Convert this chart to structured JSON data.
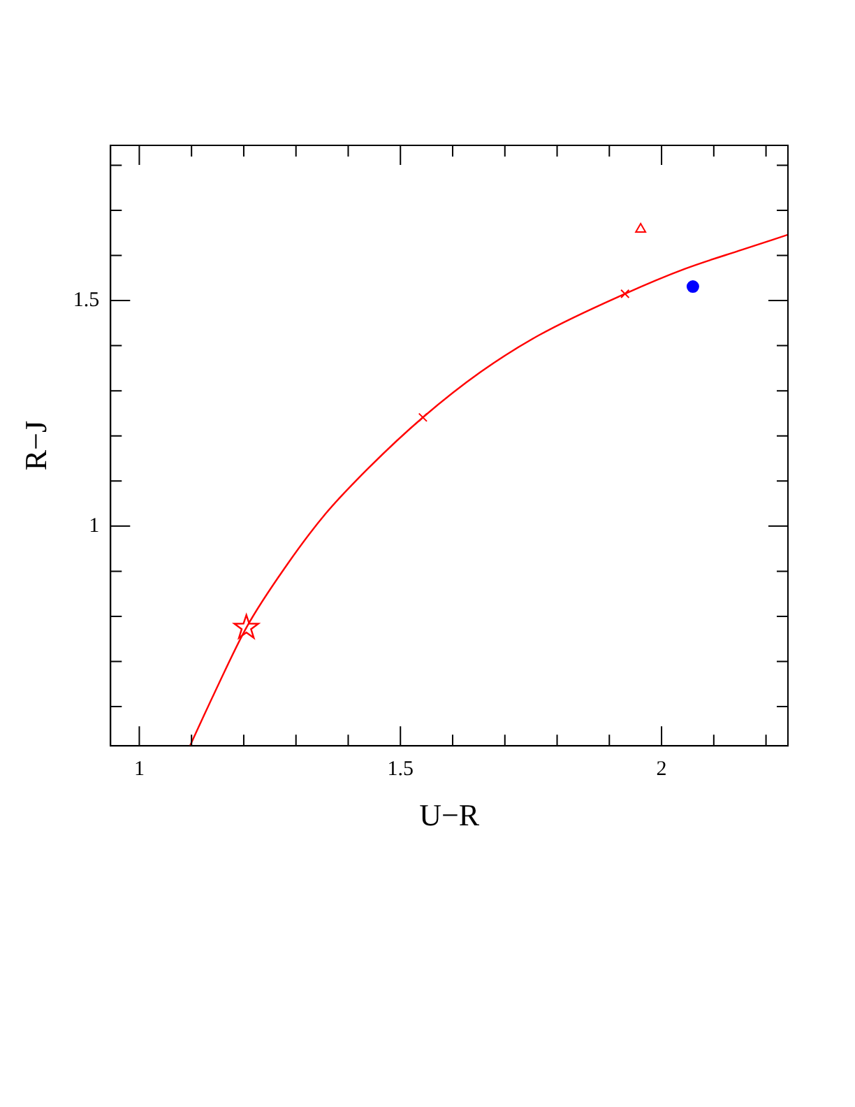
{
  "chart_data": {
    "type": "scatter",
    "xlabel": "U−R",
    "ylabel": "R−J",
    "xlim": [
      0.945,
      2.242
    ],
    "ylim": [
      0.513,
      1.844
    ],
    "xticks": [
      1,
      {
        "value": 1.1,
        "label": null
      },
      {
        "value": 1.2,
        "label": null
      },
      {
        "value": 1.3,
        "label": null
      },
      {
        "value": 1.4,
        "label": null
      },
      1.5,
      {
        "value": 1.6,
        "label": null
      },
      {
        "value": 1.7,
        "label": null
      },
      {
        "value": 1.8,
        "label": null
      },
      {
        "value": 1.9,
        "label": null
      },
      2,
      {
        "value": 2.1,
        "label": null
      },
      {
        "value": 2.2,
        "label": null
      }
    ],
    "yticks": [
      {
        "value": 0.6,
        "label": null
      },
      {
        "value": 0.7,
        "label": null
      },
      {
        "value": 0.8,
        "label": null
      },
      {
        "value": 0.9,
        "label": null
      },
      1,
      {
        "value": 1.1,
        "label": null
      },
      {
        "value": 1.2,
        "label": null
      },
      {
        "value": 1.3,
        "label": null
      },
      {
        "value": 1.4,
        "label": null
      },
      1.5,
      {
        "value": 1.6,
        "label": null
      },
      {
        "value": 1.7,
        "label": null
      },
      {
        "value": 1.8,
        "label": null
      }
    ],
    "grid": false,
    "legend": false,
    "series": [
      {
        "type": "line",
        "color": "#ff0000",
        "marker": "none",
        "line_style": "solid",
        "x": [
          1.097,
          1.143,
          1.205,
          1.282,
          1.357,
          1.44,
          1.543,
          1.654,
          1.765,
          1.93,
          2.044,
          2.155,
          2.242
        ],
        "values": [
          0.513,
          0.628,
          0.775,
          0.913,
          1.028,
          1.13,
          1.241,
          1.342,
          1.423,
          1.515,
          1.57,
          1.613,
          1.646
        ]
      },
      {
        "color": "#ff0000",
        "marker": "star",
        "x": [
          1.205
        ],
        "values": [
          0.775
        ]
      },
      {
        "color": "#ff0000",
        "marker": "cross",
        "x": [
          1.543,
          1.93
        ],
        "values": [
          1.241,
          1.515
        ]
      },
      {
        "color": "#ff0000",
        "marker": "triangle",
        "x": [
          1.96
        ],
        "values": [
          1.658
        ]
      },
      {
        "color": "#0000ff",
        "marker": "circle",
        "x": [
          2.06
        ],
        "values": [
          1.531
        ]
      }
    ]
  }
}
